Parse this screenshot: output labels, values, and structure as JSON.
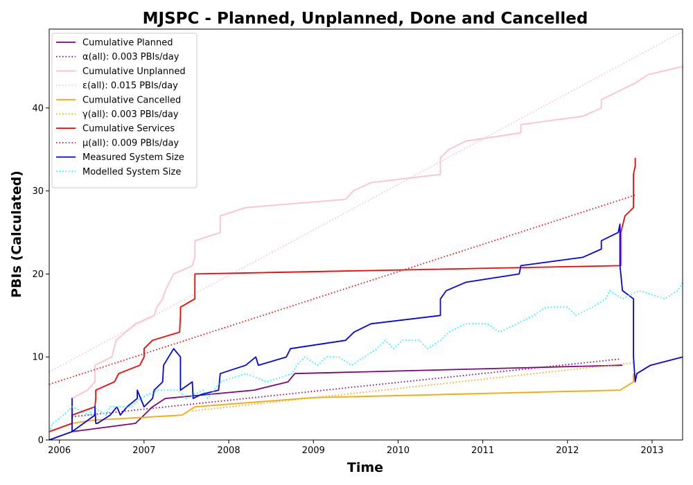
{
  "chart_data": {
    "type": "line",
    "title": "MJSPC - Planned, Unplanned, Done  and Cancelled",
    "xlabel": "Time",
    "ylabel": "PBIs (Calculated)",
    "xlim": [
      2005.88,
      2013.36
    ],
    "ylim": [
      0,
      49.5
    ],
    "x_ticks": [
      2006,
      2007,
      2008,
      2009,
      2010,
      2011,
      2012,
      2013
    ],
    "x_tick_labels": [
      "2006",
      "2007",
      "2008",
      "2009",
      "2010",
      "2011",
      "2012",
      "2013"
    ],
    "y_ticks": [
      0,
      10,
      20,
      30,
      40
    ],
    "y_tick_labels": [
      "0",
      "10",
      "20",
      "30",
      "40"
    ],
    "grid": false,
    "legend_position": "top-left",
    "series": [
      {
        "name": "Cumulative Planned",
        "color": "#800080",
        "style": "solid",
        "points": [
          [
            2006.15,
            1
          ],
          [
            2006.9,
            2
          ],
          [
            2007.1,
            4
          ],
          [
            2007.25,
            5
          ],
          [
            2008.3,
            6
          ],
          [
            2008.7,
            7
          ],
          [
            2008.78,
            8
          ],
          [
            2012.65,
            9
          ]
        ]
      },
      {
        "name": "α(all): 0.003 PBIs/day",
        "color": "#800080",
        "style": "dotted",
        "points": [
          [
            2006.15,
            2.8
          ],
          [
            2012.62,
            9.75
          ]
        ]
      },
      {
        "name": "Cumulative Unplanned",
        "color": "#ffc0cb",
        "style": "solid",
        "points": [
          [
            2006.15,
            5
          ],
          [
            2006.33,
            6
          ],
          [
            2006.42,
            7
          ],
          [
            2006.42,
            9
          ],
          [
            2006.62,
            10
          ],
          [
            2006.67,
            12
          ],
          [
            2006.9,
            14
          ],
          [
            2007.12,
            15
          ],
          [
            2007.15,
            16
          ],
          [
            2007.22,
            17
          ],
          [
            2007.25,
            18
          ],
          [
            2007.3,
            19
          ],
          [
            2007.35,
            20
          ],
          [
            2007.57,
            21
          ],
          [
            2007.6,
            22
          ],
          [
            2007.6,
            24
          ],
          [
            2007.9,
            25
          ],
          [
            2007.9,
            27
          ],
          [
            2008.2,
            28
          ],
          [
            2009.38,
            29
          ],
          [
            2009.47,
            30
          ],
          [
            2009.68,
            31
          ],
          [
            2010.5,
            32
          ],
          [
            2010.5,
            34
          ],
          [
            2010.6,
            35
          ],
          [
            2010.8,
            36
          ],
          [
            2011.45,
            37
          ],
          [
            2011.45,
            38
          ],
          [
            2012.18,
            39
          ],
          [
            2012.4,
            40
          ],
          [
            2012.4,
            41
          ],
          [
            2012.6,
            42
          ],
          [
            2012.8,
            43
          ],
          [
            2012.95,
            44
          ],
          [
            2013.36,
            45
          ]
        ]
      },
      {
        "name": "ε(all): 0.015 PBIs/day",
        "color": "#ffc0cb",
        "style": "dotted",
        "points": [
          [
            2005.88,
            8.2
          ],
          [
            2013.36,
            49.2
          ]
        ]
      },
      {
        "name": "Cumulative Cancelled",
        "color": "#ffa500",
        "style": "solid",
        "points": [
          [
            2006.15,
            2
          ],
          [
            2006.42,
            2.4
          ],
          [
            2006.6,
            2.5
          ],
          [
            2007.45,
            3
          ],
          [
            2007.6,
            4
          ],
          [
            2009.0,
            5.1
          ],
          [
            2012.62,
            6
          ],
          [
            2012.78,
            7
          ],
          [
            2012.78,
            8
          ]
        ]
      },
      {
        "name": "γ(all): 0.003 PBIs/day",
        "color": "#ffa500",
        "style": "dotted",
        "points": [
          [
            2007.57,
            3.5
          ],
          [
            2012.78,
            9.3
          ]
        ]
      },
      {
        "name": "Cumulative Services",
        "color": "#ff0000",
        "style": "solid",
        "points": [
          [
            2005.88,
            1
          ],
          [
            2006.15,
            2
          ],
          [
            2006.15,
            3
          ],
          [
            2006.42,
            4
          ],
          [
            2006.43,
            5
          ],
          [
            2006.43,
            6
          ],
          [
            2006.65,
            7
          ],
          [
            2006.7,
            8
          ],
          [
            2006.95,
            9
          ],
          [
            2007.0,
            10
          ],
          [
            2007.0,
            11
          ],
          [
            2007.1,
            12
          ],
          [
            2007.42,
            13
          ],
          [
            2007.43,
            15
          ],
          [
            2007.43,
            16
          ],
          [
            2007.6,
            17
          ],
          [
            2007.6,
            20
          ],
          [
            2012.63,
            21
          ],
          [
            2012.63,
            25
          ],
          [
            2012.68,
            27
          ],
          [
            2012.78,
            28
          ],
          [
            2012.78,
            32
          ],
          [
            2012.8,
            33
          ],
          [
            2012.8,
            34
          ]
        ]
      },
      {
        "name": "μ(all): 0.009 PBIs/day",
        "color": "#ff0000",
        "style": "dotted",
        "points": [
          [
            2005.88,
            6.7
          ],
          [
            2012.8,
            29.5
          ]
        ]
      },
      {
        "name": "Measured System Size",
        "color": "#0000ff",
        "style": "solid",
        "points": [
          [
            2005.88,
            0
          ],
          [
            2006.15,
            1
          ],
          [
            2006.15,
            5
          ],
          [
            2006.15,
            1
          ],
          [
            2006.42,
            3
          ],
          [
            2006.42,
            4
          ],
          [
            2006.43,
            2
          ],
          [
            2006.45,
            2
          ],
          [
            2006.6,
            3
          ],
          [
            2006.68,
            4
          ],
          [
            2006.72,
            3
          ],
          [
            2006.8,
            4
          ],
          [
            2006.92,
            5
          ],
          [
            2006.92,
            6
          ],
          [
            2007.0,
            4
          ],
          [
            2007.1,
            5
          ],
          [
            2007.12,
            6
          ],
          [
            2007.22,
            7
          ],
          [
            2007.23,
            9
          ],
          [
            2007.35,
            11
          ],
          [
            2007.43,
            10
          ],
          [
            2007.43,
            6
          ],
          [
            2007.57,
            7
          ],
          [
            2007.58,
            5
          ],
          [
            2007.68,
            5.5
          ],
          [
            2007.88,
            6
          ],
          [
            2007.9,
            8
          ],
          [
            2008.2,
            9
          ],
          [
            2008.32,
            10
          ],
          [
            2008.35,
            9
          ],
          [
            2008.68,
            10
          ],
          [
            2008.73,
            11
          ],
          [
            2009.38,
            12
          ],
          [
            2009.48,
            13
          ],
          [
            2009.68,
            14
          ],
          [
            2010.5,
            15
          ],
          [
            2010.5,
            17
          ],
          [
            2010.57,
            18
          ],
          [
            2010.8,
            19
          ],
          [
            2011.43,
            20
          ],
          [
            2011.45,
            21
          ],
          [
            2012.18,
            22
          ],
          [
            2012.4,
            23
          ],
          [
            2012.4,
            24
          ],
          [
            2012.6,
            25
          ],
          [
            2012.62,
            26
          ],
          [
            2012.62,
            21
          ],
          [
            2012.65,
            18
          ],
          [
            2012.78,
            17
          ],
          [
            2012.78,
            10
          ],
          [
            2012.8,
            7
          ],
          [
            2012.82,
            8
          ],
          [
            2012.98,
            9
          ],
          [
            2013.36,
            10
          ]
        ]
      },
      {
        "name": "Modelled System Size",
        "color": "#00ffff",
        "style": "dotted",
        "points": [
          [
            2005.88,
            1
          ],
          [
            2005.92,
            2
          ],
          [
            2006.05,
            3
          ],
          [
            2006.15,
            4
          ],
          [
            2006.35,
            3
          ],
          [
            2006.4,
            4
          ],
          [
            2006.55,
            3
          ],
          [
            2006.6,
            4
          ],
          [
            2006.85,
            4
          ],
          [
            2006.95,
            5
          ],
          [
            2007.15,
            6
          ],
          [
            2007.4,
            6
          ],
          [
            2007.5,
            5
          ],
          [
            2007.7,
            6
          ],
          [
            2007.75,
            5
          ],
          [
            2007.9,
            7
          ],
          [
            2008.2,
            8
          ],
          [
            2008.45,
            7
          ],
          [
            2008.75,
            8
          ],
          [
            2008.8,
            9
          ],
          [
            2008.9,
            10
          ],
          [
            2009.05,
            9
          ],
          [
            2009.15,
            10
          ],
          [
            2009.3,
            10
          ],
          [
            2009.45,
            9
          ],
          [
            2009.6,
            10
          ],
          [
            2009.75,
            11
          ],
          [
            2009.85,
            12
          ],
          [
            2009.95,
            11
          ],
          [
            2010.05,
            12
          ],
          [
            2010.25,
            12
          ],
          [
            2010.35,
            11
          ],
          [
            2010.5,
            12
          ],
          [
            2010.6,
            13
          ],
          [
            2010.8,
            14
          ],
          [
            2011.05,
            14
          ],
          [
            2011.2,
            13
          ],
          [
            2011.4,
            14
          ],
          [
            2011.6,
            15
          ],
          [
            2011.75,
            16
          ],
          [
            2012.0,
            16
          ],
          [
            2012.1,
            15
          ],
          [
            2012.3,
            16
          ],
          [
            2012.45,
            17
          ],
          [
            2012.5,
            18
          ],
          [
            2012.65,
            17
          ],
          [
            2012.85,
            18
          ],
          [
            2013.15,
            17
          ],
          [
            2013.3,
            18
          ],
          [
            2013.36,
            19
          ]
        ]
      }
    ]
  }
}
